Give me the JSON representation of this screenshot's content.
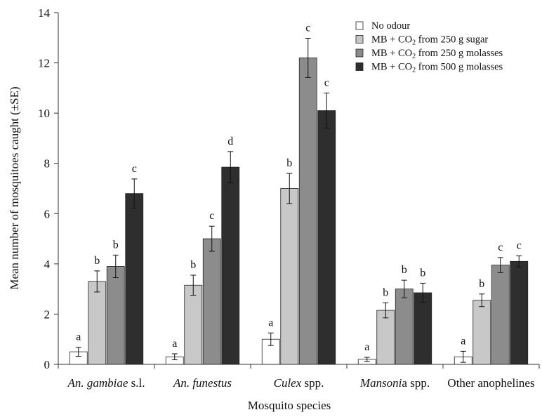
{
  "chart_data": {
    "type": "bar",
    "title": "",
    "xlabel": "Mosquito species",
    "ylabel": "Mean number of mosquitoes caught (±SE)",
    "ylim": [
      0,
      14
    ],
    "yticks": [
      0,
      2,
      4,
      6,
      8,
      10,
      12,
      14
    ],
    "grid": false,
    "legend_position": "top-right",
    "categories": [
      {
        "parts": [
          {
            "text": "An. gambiae",
            "italic": true
          },
          {
            "text": " s.l.",
            "italic": false
          }
        ]
      },
      {
        "parts": [
          {
            "text": "An. funestus",
            "italic": true
          }
        ]
      },
      {
        "parts": [
          {
            "text": "Culex",
            "italic": true
          },
          {
            "text": " spp.",
            "italic": false
          }
        ]
      },
      {
        "parts": [
          {
            "text": "Mansoni",
            "italic": true
          },
          {
            "text": "a spp.",
            "italic": false
          }
        ]
      },
      {
        "parts": [
          {
            "text": "Other anophelines",
            "italic": false
          }
        ]
      }
    ],
    "series": [
      {
        "name": "No odour",
        "color": "#ffffff",
        "values": [
          0.5,
          0.3,
          1.0,
          0.2,
          0.3
        ],
        "errors": [
          0.18,
          0.12,
          0.25,
          0.08,
          0.22
        ],
        "letters": [
          "a",
          "a",
          "a",
          "a",
          "a"
        ]
      },
      {
        "name": "MB + CO2 from 250 g sugar",
        "color": "#c8c8c8",
        "values": [
          3.3,
          3.15,
          7.0,
          2.15,
          2.55
        ],
        "errors": [
          0.42,
          0.4,
          0.6,
          0.3,
          0.25
        ],
        "letters": [
          "b",
          "b",
          "b",
          "b",
          "b"
        ]
      },
      {
        "name": "MB + CO2 from 250 g molasses",
        "color": "#8c8c8c",
        "values": [
          3.9,
          5.0,
          12.2,
          3.0,
          3.95
        ],
        "errors": [
          0.45,
          0.5,
          0.78,
          0.35,
          0.3
        ],
        "letters": [
          "b",
          "c",
          "c",
          "b",
          "c"
        ]
      },
      {
        "name": "MB + CO2 from 500 g molasses",
        "color": "#2e2e2e",
        "values": [
          6.8,
          7.85,
          10.1,
          2.85,
          4.1
        ],
        "errors": [
          0.58,
          0.62,
          0.7,
          0.38,
          0.22
        ],
        "letters": [
          "c",
          "d",
          "c",
          "b",
          "c"
        ]
      }
    ],
    "legend": [
      {
        "prefix": "No odour",
        "sub": "",
        "suffix": ""
      },
      {
        "prefix": "MB + CO",
        "sub": "2",
        "suffix": " from 250 g sugar"
      },
      {
        "prefix": "MB + CO",
        "sub": "2",
        "suffix": " from 250 g molasses"
      },
      {
        "prefix": " MB + CO",
        "sub": "2",
        "suffix": " from 500 g molasses"
      }
    ]
  }
}
